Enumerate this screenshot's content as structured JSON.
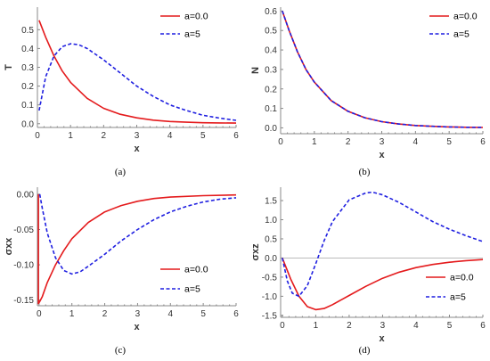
{
  "colors": {
    "series_a0": "#e41a1c",
    "series_a5": "#1f1fe0",
    "axis": "#888888",
    "zero_line": "#bbbbbb"
  },
  "chart_data": [
    {
      "type": "line",
      "caption": "(a)",
      "xlabel": "x",
      "ylabel": "T",
      "xlim": [
        0,
        6
      ],
      "ylim": [
        -0.02,
        0.62
      ],
      "xticks": [
        "0",
        "1",
        "2",
        "3",
        "4",
        "5",
        "6"
      ],
      "yticks": [
        "0.0",
        "0.1",
        "0.2",
        "0.3",
        "0.4",
        "0.5"
      ],
      "legend_position": "top-right",
      "series": [
        {
          "name": "a=0.0",
          "style": "solid",
          "x": [
            0.05,
            0.25,
            0.5,
            0.75,
            1.0,
            1.5,
            2.0,
            2.5,
            3.0,
            3.5,
            4.0,
            4.5,
            5.0,
            5.5,
            6.0
          ],
          "y": [
            0.55,
            0.46,
            0.36,
            0.28,
            0.22,
            0.135,
            0.082,
            0.05,
            0.031,
            0.019,
            0.012,
            0.008,
            0.005,
            0.004,
            0.003
          ]
        },
        {
          "name": "a=5",
          "style": "dashed",
          "x": [
            0.05,
            0.25,
            0.5,
            0.75,
            1.0,
            1.25,
            1.5,
            2.0,
            2.5,
            3.0,
            3.5,
            4.0,
            4.5,
            5.0,
            5.5,
            6.0
          ],
          "y": [
            0.07,
            0.25,
            0.36,
            0.41,
            0.425,
            0.42,
            0.4,
            0.34,
            0.27,
            0.2,
            0.145,
            0.1,
            0.07,
            0.045,
            0.03,
            0.018
          ]
        }
      ]
    },
    {
      "type": "line",
      "caption": "(b)",
      "xlabel": "x",
      "ylabel": "N",
      "xlim": [
        0,
        6
      ],
      "ylim": [
        -0.03,
        0.62
      ],
      "xticks": [
        "0",
        "1",
        "2",
        "3",
        "4",
        "5",
        "6"
      ],
      "yticks": [
        "0.0",
        "0.1",
        "0.2",
        "0.3",
        "0.4",
        "0.5",
        "0.6"
      ],
      "legend_position": "top-right",
      "series": [
        {
          "name": "a=0.0",
          "style": "solid",
          "x": [
            0.05,
            0.25,
            0.5,
            0.75,
            1.0,
            1.5,
            2.0,
            2.5,
            3.0,
            3.5,
            4.0,
            4.5,
            5.0,
            5.5,
            6.0
          ],
          "y": [
            0.6,
            0.5,
            0.39,
            0.3,
            0.235,
            0.14,
            0.085,
            0.052,
            0.032,
            0.02,
            0.012,
            0.008,
            0.005,
            0.003,
            0.002
          ]
        },
        {
          "name": "a=5",
          "style": "dashed",
          "x": [
            0.05,
            0.25,
            0.5,
            0.75,
            1.0,
            1.5,
            2.0,
            2.5,
            3.0,
            3.5,
            4.0,
            4.5,
            5.0,
            5.5,
            6.0
          ],
          "y": [
            0.6,
            0.5,
            0.39,
            0.3,
            0.235,
            0.14,
            0.085,
            0.052,
            0.032,
            0.02,
            0.012,
            0.008,
            0.005,
            0.003,
            0.002
          ]
        }
      ]
    },
    {
      "type": "line",
      "caption": "(c)",
      "xlabel": "x",
      "ylabel": "σxx",
      "xlim": [
        -0.05,
        6
      ],
      "ylim": [
        -0.158,
        0.01
      ],
      "xticks": [
        "0",
        "1",
        "2",
        "3",
        "4",
        "5",
        "6"
      ],
      "yticks": [
        "0.00",
        "-0.05",
        "-0.10",
        "-0.15"
      ],
      "legend_position": "bottom-right",
      "series": [
        {
          "name": "a=0.0",
          "style": "solid",
          "x": [
            -0.02,
            -0.02,
            0.02,
            0.1,
            0.25,
            0.5,
            0.75,
            1.0,
            1.5,
            2.0,
            2.5,
            3.0,
            3.5,
            4.0,
            5.0,
            6.0
          ],
          "y": [
            0.0,
            -0.155,
            -0.152,
            -0.145,
            -0.125,
            -0.1,
            -0.08,
            -0.063,
            -0.04,
            -0.025,
            -0.016,
            -0.01,
            -0.006,
            -0.004,
            -0.002,
            -0.001
          ]
        },
        {
          "name": "a=5",
          "style": "dashed",
          "x": [
            0.02,
            0.1,
            0.25,
            0.5,
            0.75,
            1.0,
            1.25,
            1.5,
            2.0,
            2.5,
            3.0,
            3.5,
            4.0,
            4.5,
            5.0,
            5.5,
            6.0
          ],
          "y": [
            0.0,
            -0.02,
            -0.055,
            -0.09,
            -0.108,
            -0.113,
            -0.11,
            -0.102,
            -0.085,
            -0.066,
            -0.05,
            -0.036,
            -0.025,
            -0.017,
            -0.011,
            -0.007,
            -0.005
          ]
        }
      ]
    },
    {
      "type": "line",
      "caption": "(d)",
      "xlabel": "x",
      "ylabel": "σxz",
      "xlim": [
        -0.05,
        6
      ],
      "ylim": [
        -1.55,
        1.85
      ],
      "xticks": [
        "0",
        "1",
        "2",
        "3",
        "4",
        "5",
        "6"
      ],
      "yticks": [
        "1.5",
        "1.0",
        "0.5",
        "0.0",
        "-0.5",
        "-1.0",
        "-1.5"
      ],
      "legend_position": "bottom-right",
      "series": [
        {
          "name": "a=0.0",
          "style": "solid",
          "x": [
            0.0,
            0.25,
            0.5,
            0.75,
            1.0,
            1.25,
            1.5,
            2.0,
            2.5,
            3.0,
            3.5,
            4.0,
            4.5,
            5.0,
            5.5,
            6.0
          ],
          "y": [
            0.0,
            -0.55,
            -1.0,
            -1.27,
            -1.35,
            -1.32,
            -1.22,
            -0.98,
            -0.74,
            -0.53,
            -0.37,
            -0.25,
            -0.17,
            -0.11,
            -0.07,
            -0.04
          ]
        },
        {
          "name": "a=5",
          "style": "dashed",
          "x": [
            0.0,
            0.15,
            0.3,
            0.5,
            0.75,
            1.0,
            1.25,
            1.5,
            2.0,
            2.5,
            2.7,
            3.0,
            3.5,
            4.0,
            4.5,
            5.0,
            5.5,
            6.0
          ],
          "y": [
            0.0,
            -0.6,
            -0.92,
            -1.0,
            -0.72,
            -0.15,
            0.45,
            0.95,
            1.52,
            1.7,
            1.72,
            1.65,
            1.45,
            1.2,
            0.95,
            0.75,
            0.58,
            0.43
          ]
        }
      ]
    }
  ]
}
